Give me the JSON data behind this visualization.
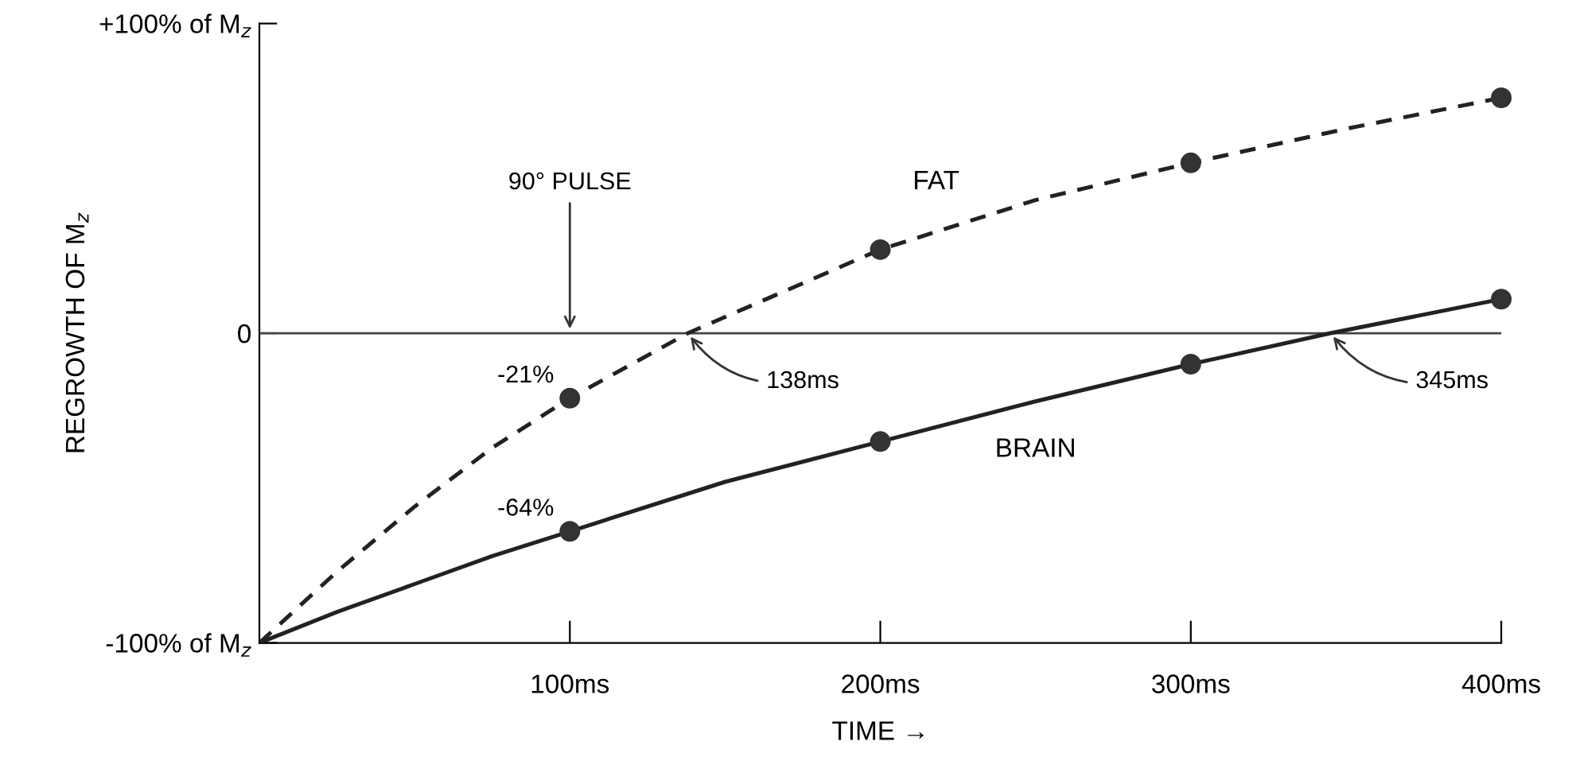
{
  "chart_data": {
    "type": "line",
    "xlabel": "TIME →",
    "ylabel": "REGROWTH OF M$_{z}$",
    "xlim": [
      0,
      400
    ],
    "ylim": [
      -100,
      100
    ],
    "xticks": [
      {
        "value": 100,
        "label": "100ms"
      },
      {
        "value": 200,
        "label": "200ms"
      },
      {
        "value": 300,
        "label": "300ms"
      },
      {
        "value": 400,
        "label": "400ms"
      }
    ],
    "yticks": [
      {
        "value": -100,
        "label": "-100% of M$_{z}$"
      },
      {
        "value": 0,
        "label": "0"
      },
      {
        "value": 100,
        "label": "+100% of M$_{z}$"
      }
    ],
    "grid": false,
    "legend": false,
    "series": [
      {
        "name": "FAT",
        "line_style": "dashed",
        "marker": "none",
        "color": "#222222",
        "x": [
          0,
          25,
          50,
          75,
          100,
          138,
          200,
          250,
          300,
          350,
          400
        ],
        "values": [
          -100,
          -77,
          -56,
          -37,
          -21,
          0,
          27,
          43,
          55,
          66,
          76
        ]
      },
      {
        "name": "BRAIN",
        "line_style": "solid",
        "marker": "none",
        "color": "#222222",
        "x": [
          0,
          25,
          50,
          75,
          100,
          150,
          200,
          250,
          300,
          345,
          400
        ],
        "values": [
          -100,
          -90,
          -81,
          -72,
          -64,
          -48,
          -35,
          -22,
          -10,
          0,
          11
        ]
      },
      {
        "type": "scatter",
        "marker": "circle",
        "color": "#333333",
        "x": [
          100,
          200,
          300,
          400
        ],
        "values": [
          -21,
          27,
          55,
          76
        ]
      },
      {
        "type": "scatter",
        "marker": "circle",
        "color": "#333333",
        "x": [
          100,
          200,
          300,
          400
        ],
        "values": [
          -64,
          -35,
          -10,
          11
        ]
      }
    ],
    "ref_lines": [
      {
        "axis": "y",
        "value": 0,
        "color": "#444444",
        "line_style": "solid"
      }
    ],
    "annotations": [
      {
        "text": "90° PULSE",
        "x": 100,
        "y": 0
      },
      {
        "text": "138ms",
        "x": 138,
        "y": 0
      },
      {
        "text": "345ms",
        "x": 345,
        "y": 0
      },
      {
        "text": "-21%",
        "x": 100,
        "y": -21
      },
      {
        "text": "-64%",
        "x": 100,
        "y": -64
      }
    ]
  }
}
